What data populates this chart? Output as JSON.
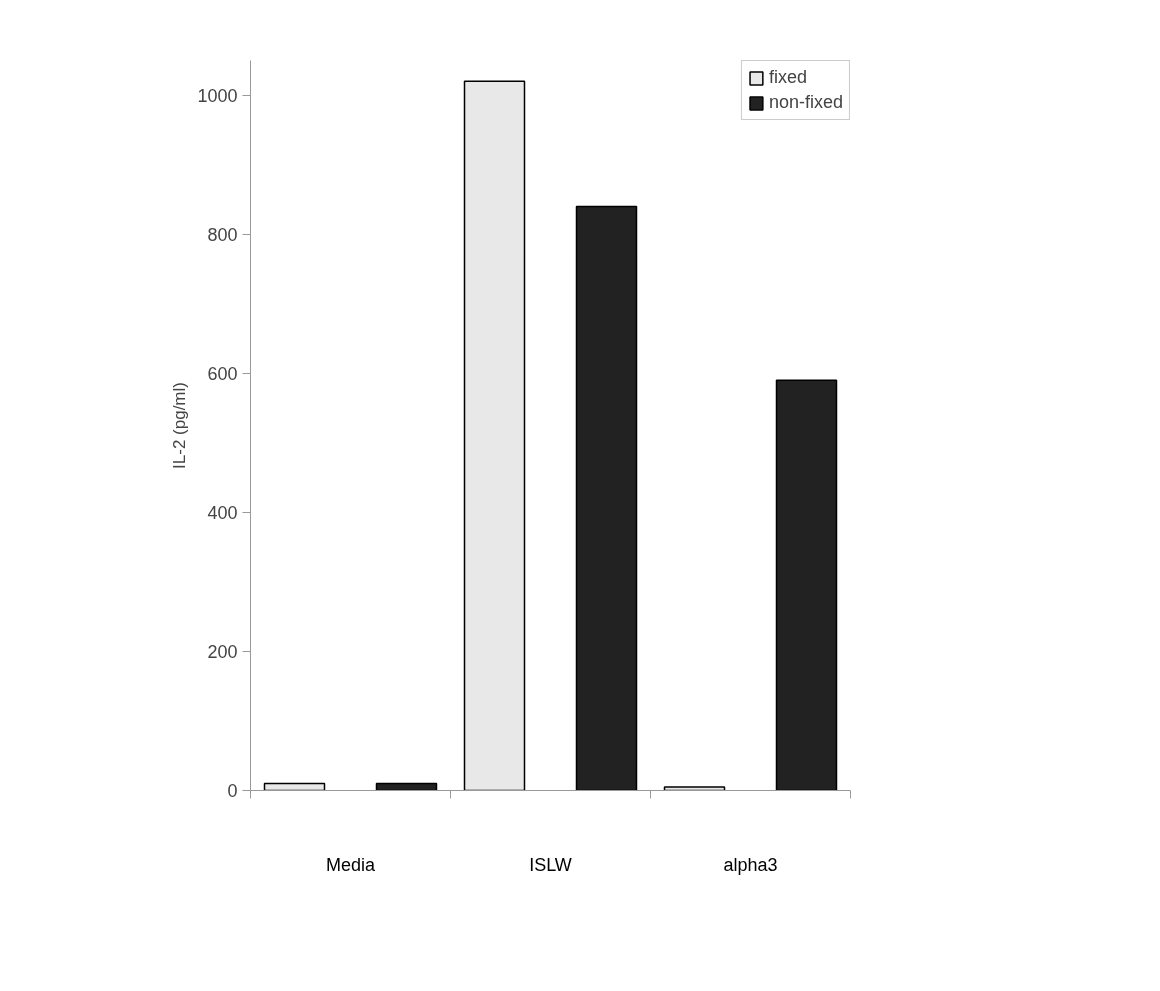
{
  "chart_data": {
    "type": "bar",
    "ylabel": "IL-2 (pg/ml)",
    "categories": [
      "Media",
      "ISLW",
      "alpha3"
    ],
    "series": [
      {
        "name": "fixed",
        "color": "#e8e8e8",
        "values": [
          10,
          1020,
          5
        ]
      },
      {
        "name": "non-fixed",
        "color": "#222222",
        "values": [
          10,
          840,
          590
        ]
      }
    ],
    "ylim": [
      0,
      1050
    ],
    "yticks": [
      0,
      200,
      400,
      600,
      800,
      1000
    ],
    "grid": false,
    "legend": "top right"
  }
}
